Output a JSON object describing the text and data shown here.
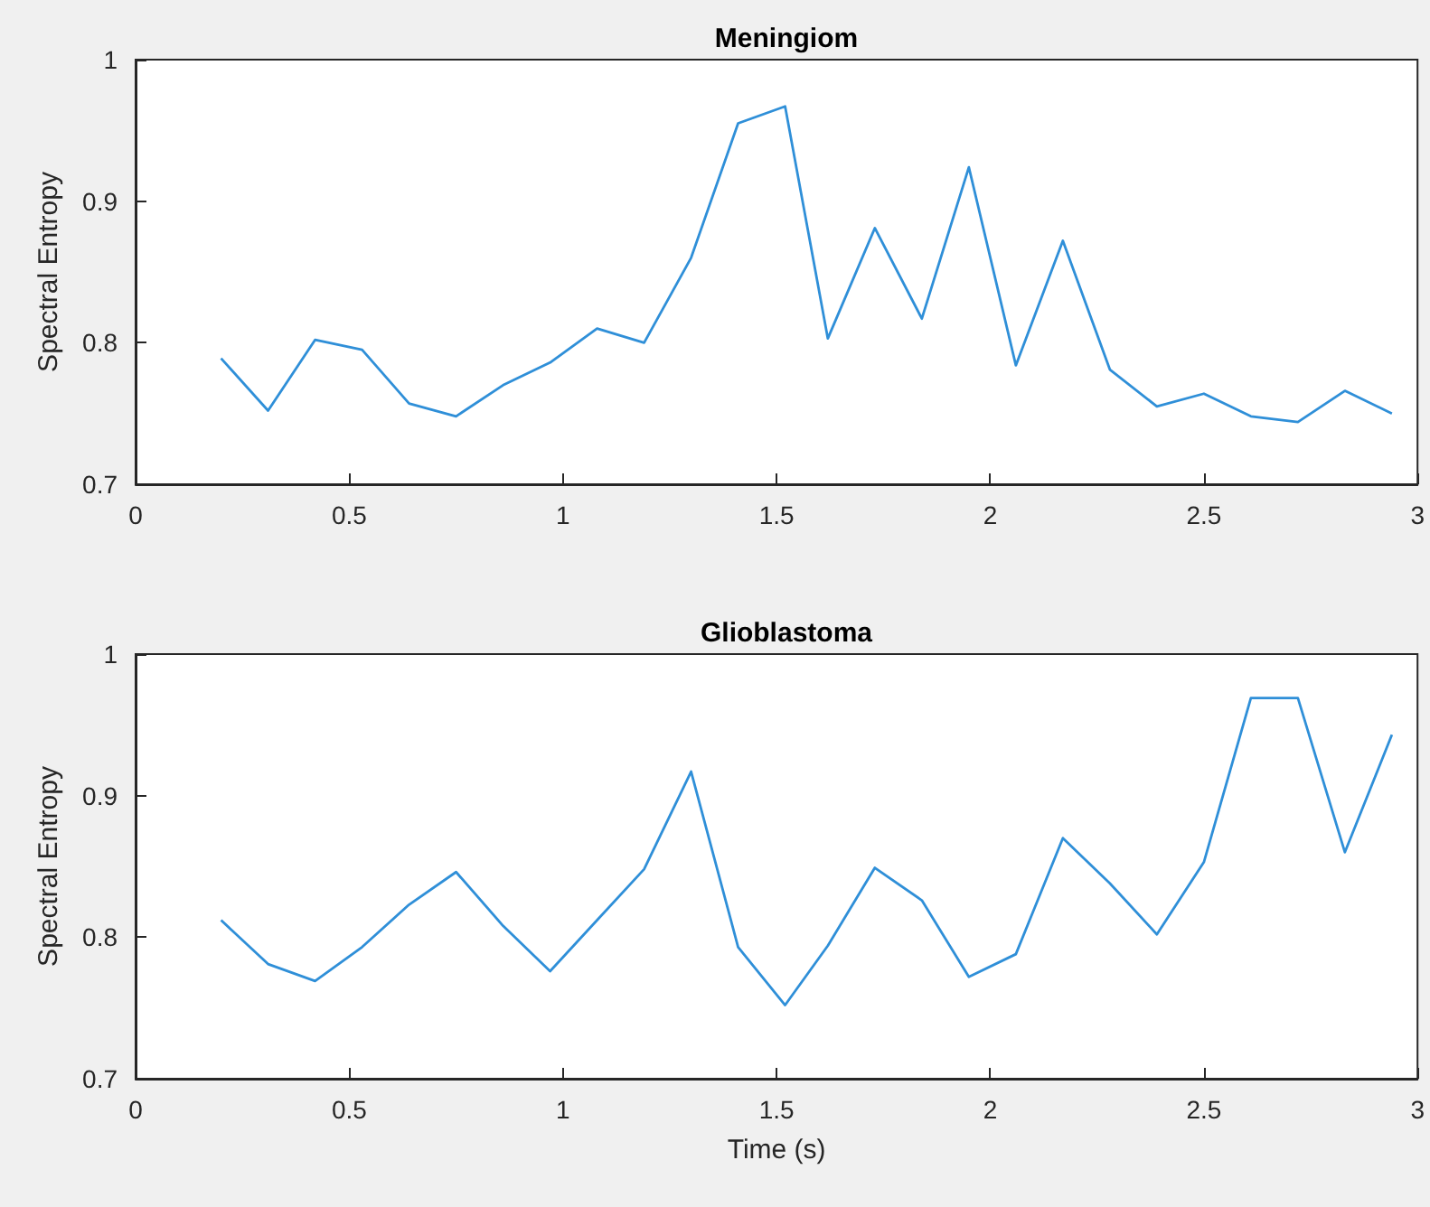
{
  "chart_data": [
    {
      "type": "line",
      "title": "Meningiom",
      "ylabel": "Spectral Entropy",
      "x": [
        0.2,
        0.31,
        0.42,
        0.53,
        0.64,
        0.75,
        0.86,
        0.97,
        1.08,
        1.19,
        1.3,
        1.41,
        1.52,
        1.62,
        1.73,
        1.84,
        1.95,
        2.06,
        2.17,
        2.28,
        2.39,
        2.5,
        2.61,
        2.72,
        2.83,
        2.94
      ],
      "series": [
        {
          "color": "#2f8fd8",
          "values": [
            0.789,
            0.752,
            0.802,
            0.795,
            0.757,
            0.748,
            0.77,
            0.786,
            0.81,
            0.8,
            0.86,
            0.955,
            0.967,
            0.803,
            0.881,
            0.817,
            0.924,
            0.784,
            0.872,
            0.781,
            0.755,
            0.764,
            0.748,
            0.744,
            0.766,
            0.75
          ]
        }
      ],
      "xlim": [
        0,
        3
      ],
      "xticks": [
        0,
        0.5,
        1,
        1.5,
        2,
        2.5,
        3
      ],
      "ylim": [
        0.7,
        1
      ],
      "yticks": [
        0.7,
        0.8,
        0.9,
        1
      ],
      "grid": false,
      "marker": "none",
      "line_style": "solid"
    },
    {
      "type": "line",
      "title": "Glioblastoma",
      "xlabel": "Time (s)",
      "ylabel": "Spectral Entropy",
      "x": [
        0.2,
        0.31,
        0.42,
        0.53,
        0.64,
        0.75,
        0.86,
        0.97,
        1.08,
        1.19,
        1.3,
        1.41,
        1.52,
        1.62,
        1.73,
        1.84,
        1.95,
        2.06,
        2.17,
        2.28,
        2.39,
        2.5,
        2.61,
        2.72,
        2.83,
        2.94
      ],
      "series": [
        {
          "color": "#2f8fd8",
          "values": [
            0.812,
            0.781,
            0.769,
            0.793,
            0.823,
            0.846,
            0.808,
            0.776,
            0.812,
            0.848,
            0.917,
            0.793,
            0.752,
            0.794,
            0.849,
            0.826,
            0.772,
            0.788,
            0.87,
            0.838,
            0.802,
            0.853,
            0.969,
            0.969,
            0.86,
            0.943
          ]
        }
      ],
      "xlim": [
        0,
        3
      ],
      "xticks": [
        0,
        0.5,
        1,
        1.5,
        2,
        2.5,
        3
      ],
      "ylim": [
        0.7,
        1
      ],
      "yticks": [
        0.7,
        0.8,
        0.9,
        1
      ],
      "grid": false,
      "marker": "none",
      "line_style": "solid"
    }
  ]
}
